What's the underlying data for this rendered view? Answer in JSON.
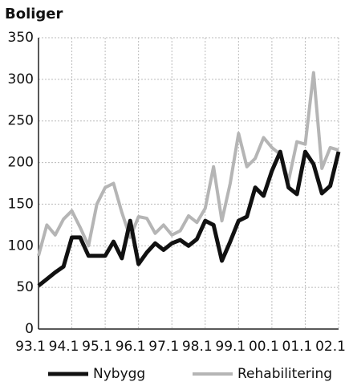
{
  "chart_data": {
    "type": "line",
    "title": "Boliger",
    "categories": [
      "93.1",
      null,
      null,
      null,
      "94.1",
      null,
      null,
      null,
      "95.1",
      null,
      null,
      null,
      "96.1",
      null,
      null,
      null,
      "97.1",
      null,
      null,
      null,
      "98.1",
      null,
      null,
      null,
      "99.1",
      null,
      null,
      null,
      "00.1",
      null,
      null,
      null,
      "01.1",
      null,
      null,
      null,
      "02.1"
    ],
    "series": [
      {
        "name": "Nybygg",
        "color": "#111111",
        "values": [
          52,
          60,
          68,
          75,
          110,
          110,
          88,
          88,
          88,
          105,
          85,
          130,
          78,
          92,
          103,
          95,
          103,
          107,
          100,
          108,
          130,
          125,
          82,
          105,
          130,
          135,
          170,
          160,
          190,
          213,
          170,
          162,
          213,
          198,
          163,
          172,
          213
        ]
      },
      {
        "name": "Rehabilitering",
        "color": "#b5b5b5",
        "values": [
          88,
          125,
          113,
          132,
          142,
          122,
          100,
          150,
          170,
          175,
          140,
          110,
          135,
          133,
          115,
          125,
          113,
          118,
          136,
          128,
          145,
          195,
          130,
          175,
          235,
          195,
          205,
          230,
          218,
          210,
          178,
          225,
          222,
          308,
          193,
          218,
          215
        ]
      }
    ],
    "ylim": [
      0,
      350
    ],
    "yticks": [
      0,
      50,
      100,
      150,
      200,
      250,
      300,
      350
    ],
    "grid": true,
    "legend": "bottom"
  }
}
